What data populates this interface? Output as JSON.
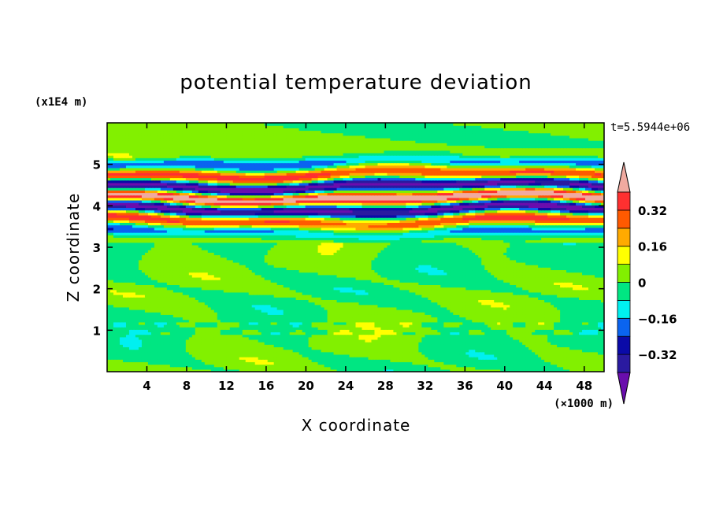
{
  "chart_data": {
    "type": "heatmap",
    "title": "potential temperature deviation",
    "xlabel": "X coordinate",
    "ylabel": "Z coordinate",
    "x_unit": "(×1000 m)",
    "y_unit": "(x1E4 m)",
    "time_label": "t=5.5944e+06",
    "xlim": [
      0,
      50
    ],
    "ylim": [
      0,
      6
    ],
    "x_ticks": [
      4,
      8,
      12,
      16,
      20,
      24,
      28,
      32,
      36,
      40,
      44,
      48
    ],
    "x_tick_labels": [
      "4",
      "8",
      "12",
      "16",
      "20",
      "24",
      "28",
      "32",
      "36",
      "40",
      "44",
      "48"
    ],
    "y_ticks": [
      1,
      2,
      3,
      4,
      5
    ],
    "y_tick_labels": [
      "1",
      "2",
      "3",
      "4",
      "5"
    ],
    "colorbar": {
      "levels": [
        -0.4,
        -0.32,
        -0.24,
        -0.16,
        -0.08,
        0,
        0.08,
        0.16,
        0.24,
        0.32,
        0.4
      ],
      "colors": [
        "#6a0dad",
        "#2a1aa0",
        "#0a0aa8",
        "#0a64f0",
        "#00f0f0",
        "#00e682",
        "#82f000",
        "#ffff00",
        "#ffaa00",
        "#ff5a00",
        "#ff3030",
        "#f0aaa0"
      ],
      "tick_values": [
        0.32,
        0.16,
        0,
        -0.16,
        -0.32
      ],
      "tick_labels": [
        "0.32",
        "0.16",
        "0",
        "−0.16",
        "−0.32"
      ]
    }
  }
}
